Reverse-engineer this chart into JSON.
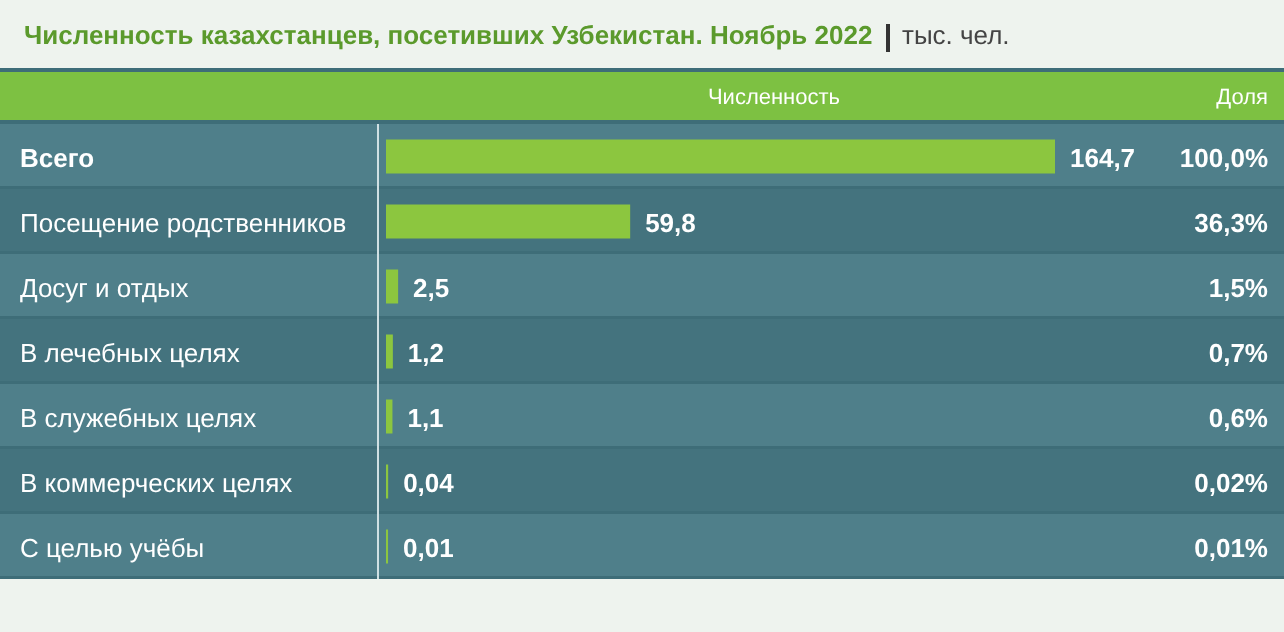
{
  "chart_data": {
    "type": "bar",
    "orientation": "horizontal",
    "title": "Численность казахстанцев, посетивших Узбекистан. Ноябрь 2022",
    "subtitle": "тыс. чел.",
    "xlabel": "Численность",
    "categories": [
      "Всего",
      "Посещение родственников",
      "Досуг и отдых",
      "В лечебных целях",
      "В служебных целях",
      "В коммерческих целях",
      "С целью учёбы"
    ],
    "values": [
      164.7,
      59.8,
      2.5,
      1.2,
      1.1,
      0.04,
      0.01
    ],
    "value_labels": [
      "164,7",
      "59,8",
      "2,5",
      "1,2",
      "1,1",
      "0,04",
      "0,01"
    ],
    "color": "#8cc63f",
    "annotations": [
      "Доля",
      "100,0%",
      "36,3%",
      "1,5%",
      "0,7%",
      "0,6%",
      "0,02%",
      "0,01%"
    ]
  }
}
